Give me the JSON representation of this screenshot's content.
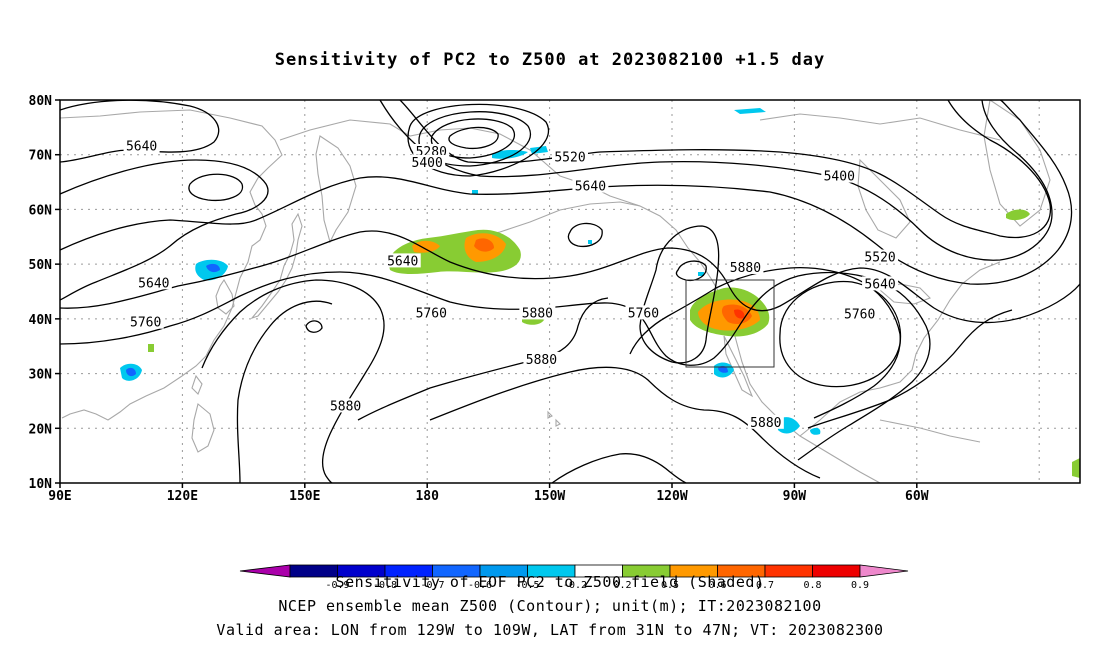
{
  "title": "Sensitivity of PC2 to Z500 at 2023082100 +1.5 day",
  "lat_labels": [
    "80N",
    "70N",
    "60N",
    "50N",
    "40N",
    "30N",
    "20N",
    "10N"
  ],
  "lon_labels": [
    "90E",
    "120E",
    "150E",
    "180",
    "150W",
    "120W",
    "90W",
    "60W"
  ],
  "contour_labels": [
    {
      "text": "5640",
      "lon": 110,
      "lat": 71.5
    },
    {
      "text": "5280",
      "lon": 181,
      "lat": 70.5
    },
    {
      "text": "5400",
      "lon": 180,
      "lat": 68.5
    },
    {
      "text": "5520",
      "lon": 215,
      "lat": 69.5
    },
    {
      "text": "5640",
      "lon": 220,
      "lat": 64.2
    },
    {
      "text": "5400",
      "lon": 281,
      "lat": 66
    },
    {
      "text": "5640",
      "lon": 113,
      "lat": 46.5
    },
    {
      "text": "5640",
      "lon": 174,
      "lat": 50.5
    },
    {
      "text": "5760",
      "lon": 111,
      "lat": 39.3
    },
    {
      "text": "5760",
      "lon": 181,
      "lat": 41
    },
    {
      "text": "5880",
      "lon": 207,
      "lat": 41
    },
    {
      "text": "5760",
      "lon": 233,
      "lat": 41
    },
    {
      "text": "5880",
      "lon": 258,
      "lat": 49.3
    },
    {
      "text": "5520",
      "lon": 291,
      "lat": 51.2
    },
    {
      "text": "5640",
      "lon": 291,
      "lat": 46.3
    },
    {
      "text": "5760",
      "lon": 286,
      "lat": 40.8
    },
    {
      "text": "5880",
      "lon": 208,
      "lat": 32.5
    },
    {
      "text": "5880",
      "lon": 160,
      "lat": 24
    },
    {
      "text": "5880",
      "lon": 263,
      "lat": 21
    }
  ],
  "colorbar": {
    "labels": [
      "-0.9",
      "-0.8",
      "-0.7",
      "-0.6",
      "-0.5",
      "-0.2",
      "0.2",
      "0.5",
      "0.6",
      "0.7",
      "0.8",
      "0.9"
    ],
    "colors": [
      "#aa00aa",
      "#000088",
      "#0000cc",
      "#0022ff",
      "#1166ff",
      "#0099ee",
      "#00c8ee",
      "#ffffff",
      "#88cc33",
      "#ff9900",
      "#ff6600",
      "#ff3300",
      "#ee0000",
      "#ee88cc"
    ]
  },
  "captions": {
    "line1": "Sensitivity of EOF PC2 to Z500 field (Shaded)",
    "line2": "NCEP ensemble mean Z500 (Contour); unit(m); IT:2023082100",
    "line3": "Valid area: LON from 129W to 109W, LAT from 31N to 47N; VT: 2023082300"
  }
}
